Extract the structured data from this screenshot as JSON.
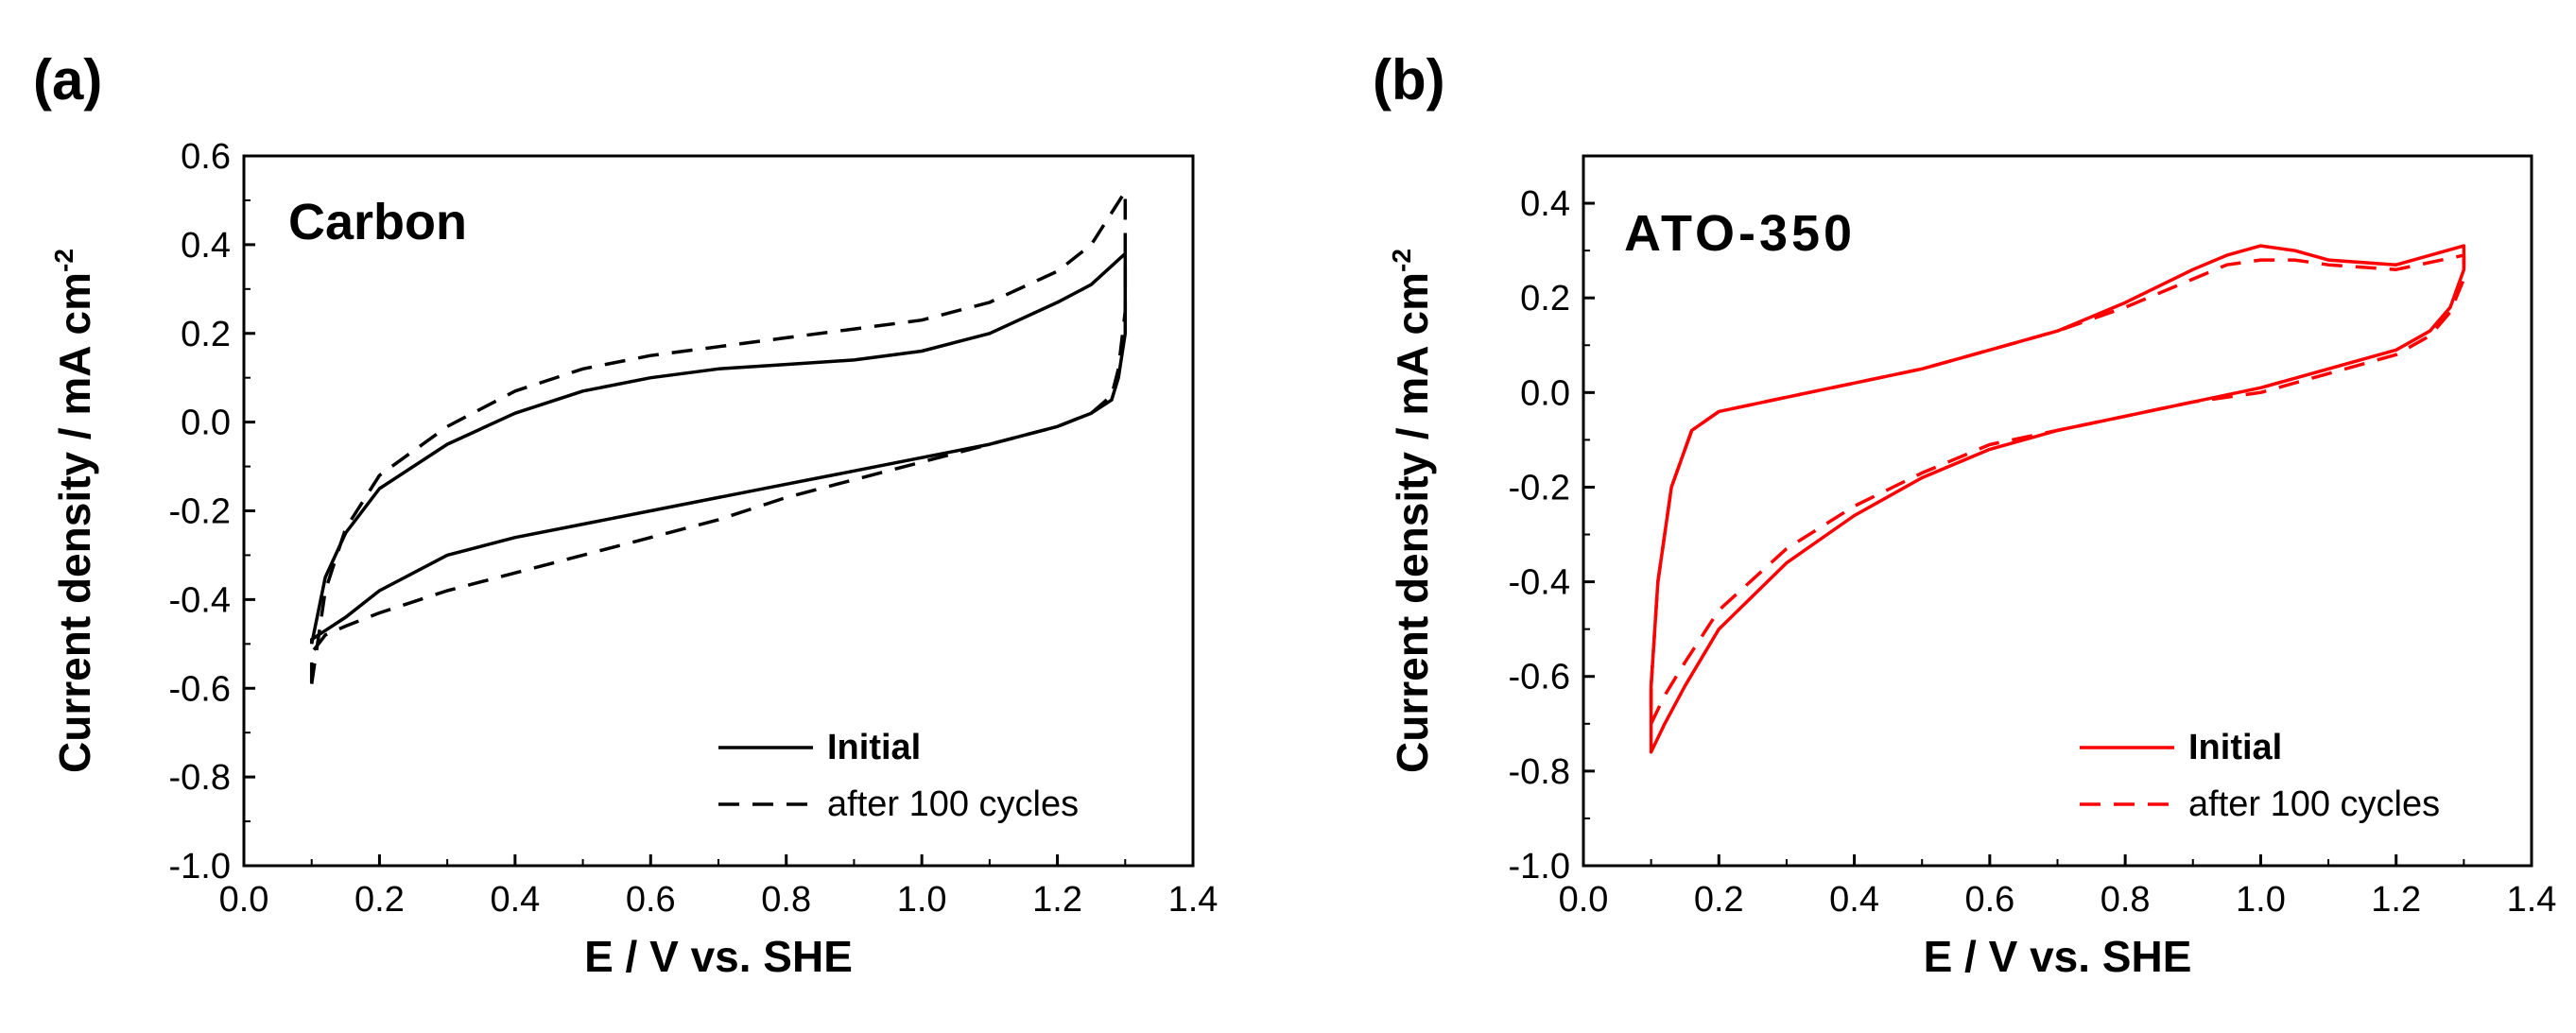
{
  "chart_data": [
    {
      "type": "line",
      "panel_label": "(a)",
      "title": "Carbon",
      "xlabel": "E / V vs. SHE",
      "ylabel": "Current density / mA cm",
      "ylabel_sup": "-2",
      "xlim": [
        0.0,
        1.4
      ],
      "ylim": [
        -1.0,
        0.6
      ],
      "xticks": [
        "0.0",
        "0.2",
        "0.4",
        "0.6",
        "0.8",
        "1.0",
        "1.2",
        "1.4"
      ],
      "yticks": [
        "-1.0",
        "-0.8",
        "-0.6",
        "-0.4",
        "-0.2",
        "0.0",
        "0.2",
        "0.4",
        "0.6"
      ],
      "color": "#000000",
      "legend_position": "bottom-right",
      "series": [
        {
          "name": "Initial",
          "style": "solid",
          "x": [
            0.1,
            0.12,
            0.15,
            0.2,
            0.3,
            0.4,
            0.5,
            0.6,
            0.7,
            0.8,
            0.9,
            1.0,
            1.1,
            1.2,
            1.25,
            1.3,
            1.3,
            1.29,
            1.28,
            1.25,
            1.2,
            1.1,
            1.0,
            0.9,
            0.8,
            0.7,
            0.6,
            0.5,
            0.4,
            0.3,
            0.2,
            0.15,
            0.12,
            0.1,
            0.1
          ],
          "y": [
            -0.5,
            -0.35,
            -0.25,
            -0.15,
            -0.05,
            0.02,
            0.07,
            0.1,
            0.12,
            0.13,
            0.14,
            0.16,
            0.2,
            0.27,
            0.31,
            0.38,
            0.2,
            0.1,
            0.05,
            0.02,
            -0.01,
            -0.05,
            -0.08,
            -0.11,
            -0.14,
            -0.17,
            -0.2,
            -0.23,
            -0.26,
            -0.3,
            -0.38,
            -0.44,
            -0.47,
            -0.49,
            -0.5
          ]
        },
        {
          "name": "after 100 cycles",
          "style": "dashed",
          "x": [
            0.1,
            0.12,
            0.15,
            0.2,
            0.3,
            0.4,
            0.5,
            0.6,
            0.7,
            0.8,
            0.9,
            1.0,
            1.1,
            1.2,
            1.25,
            1.3,
            1.3,
            1.29,
            1.28,
            1.25,
            1.2,
            1.1,
            1.0,
            0.9,
            0.8,
            0.7,
            0.6,
            0.5,
            0.4,
            0.3,
            0.2,
            0.15,
            0.12,
            0.1,
            0.1
          ],
          "y": [
            -0.59,
            -0.38,
            -0.24,
            -0.12,
            -0.01,
            0.07,
            0.12,
            0.15,
            0.17,
            0.19,
            0.21,
            0.23,
            0.27,
            0.34,
            0.4,
            0.52,
            0.25,
            0.12,
            0.06,
            0.02,
            -0.01,
            -0.05,
            -0.09,
            -0.13,
            -0.17,
            -0.22,
            -0.26,
            -0.3,
            -0.34,
            -0.38,
            -0.43,
            -0.46,
            -0.48,
            -0.52,
            -0.59
          ]
        }
      ]
    },
    {
      "type": "line",
      "panel_label": "(b)",
      "title": "ATO-350",
      "xlabel": "E / V vs. SHE",
      "ylabel": "Current density / mA cm",
      "ylabel_sup": "-2",
      "xlim": [
        0.0,
        1.4
      ],
      "ylim": [
        -1.0,
        0.5
      ],
      "xticks": [
        "0.0",
        "0.2",
        "0.4",
        "0.6",
        "0.8",
        "1.0",
        "1.2",
        "1.4"
      ],
      "yticks": [
        "-1.0",
        "-0.8",
        "-0.6",
        "-0.4",
        "-0.2",
        "0.0",
        "0.2",
        "0.4"
      ],
      "color": "#ff0000",
      "legend_position": "bottom-right",
      "series": [
        {
          "name": "Initial",
          "style": "solid",
          "x": [
            0.1,
            0.11,
            0.13,
            0.16,
            0.2,
            0.3,
            0.4,
            0.5,
            0.6,
            0.7,
            0.8,
            0.9,
            0.95,
            1.0,
            1.05,
            1.1,
            1.2,
            1.3,
            1.3,
            1.28,
            1.25,
            1.2,
            1.1,
            1.0,
            0.9,
            0.8,
            0.7,
            0.6,
            0.5,
            0.4,
            0.3,
            0.2,
            0.15,
            0.12,
            0.1,
            0.1
          ],
          "y": [
            -0.62,
            -0.4,
            -0.2,
            -0.08,
            -0.04,
            -0.01,
            0.02,
            0.05,
            0.09,
            0.13,
            0.19,
            0.26,
            0.29,
            0.31,
            0.3,
            0.28,
            0.27,
            0.31,
            0.26,
            0.18,
            0.13,
            0.09,
            0.05,
            0.01,
            -0.02,
            -0.05,
            -0.08,
            -0.12,
            -0.18,
            -0.26,
            -0.36,
            -0.5,
            -0.62,
            -0.7,
            -0.76,
            -0.62
          ]
        },
        {
          "name": "after 100 cycles",
          "style": "dashed",
          "x": [
            0.1,
            0.11,
            0.13,
            0.16,
            0.2,
            0.3,
            0.4,
            0.5,
            0.6,
            0.7,
            0.8,
            0.9,
            0.95,
            1.0,
            1.05,
            1.1,
            1.2,
            1.3,
            1.3,
            1.28,
            1.25,
            1.2,
            1.1,
            1.0,
            0.9,
            0.8,
            0.7,
            0.6,
            0.5,
            0.4,
            0.3,
            0.2,
            0.15,
            0.12,
            0.1,
            0.1
          ],
          "y": [
            -0.62,
            -0.4,
            -0.2,
            -0.08,
            -0.04,
            -0.01,
            0.02,
            0.05,
            0.09,
            0.13,
            0.18,
            0.24,
            0.27,
            0.28,
            0.28,
            0.27,
            0.26,
            0.29,
            0.24,
            0.17,
            0.12,
            0.08,
            0.04,
            0.0,
            -0.02,
            -0.05,
            -0.08,
            -0.11,
            -0.17,
            -0.24,
            -0.33,
            -0.46,
            -0.57,
            -0.64,
            -0.7,
            -0.62
          ]
        }
      ]
    }
  ]
}
